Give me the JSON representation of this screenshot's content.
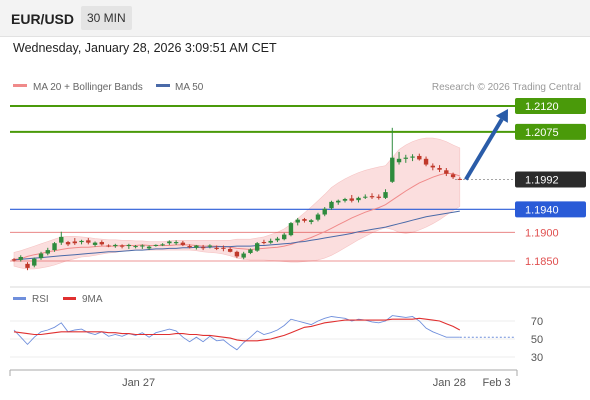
{
  "header": {
    "symbol": "EUR/USD",
    "timeframe": "30 MIN",
    "datetime": "Wednesday, January 28, 2026 3:09:51 AM CET"
  },
  "legend": {
    "ma20": "MA 20 + Bollinger Bands",
    "ma50": "MA 50",
    "credit": "Research © 2026 Trading Central"
  },
  "rsi_legend": {
    "rsi": "RSI",
    "ma": "9MA"
  },
  "colors": {
    "target_green": "#4a9a0a",
    "pivot_blue": "#2a5bd7",
    "support_red": "#e05050",
    "candle_up": "#2e8b3d",
    "candle_down": "#c0392b",
    "arrow": "#2a5ca8",
    "ma20": "#f08a8a",
    "ma50": "#4a6aa8",
    "bollinger_fill": "#fbdede",
    "rsi_line": "#6f8fdc",
    "rsi_ma": "#e03030"
  },
  "chart_data": {
    "type": "candlestick",
    "price_range": [
      1.182,
      1.216
    ],
    "levels": [
      {
        "value": 1.212,
        "label": "1.2120",
        "kind": "target"
      },
      {
        "value": 1.2075,
        "label": "1.2075",
        "kind": "target"
      },
      {
        "value": 1.1992,
        "label": "1.1992",
        "kind": "last"
      },
      {
        "value": 1.194,
        "label": "1.1940",
        "kind": "pivot"
      },
      {
        "value": 1.19,
        "label": "1.1900",
        "kind": "support"
      },
      {
        "value": 1.185,
        "label": "1.1850",
        "kind": "support"
      }
    ],
    "candles": [
      [
        1.1853,
        1.1855,
        1.1849,
        1.1851
      ],
      [
        1.1852,
        1.186,
        1.1849,
        1.1857
      ],
      [
        1.1845,
        1.1848,
        1.1834,
        1.1838
      ],
      [
        1.1842,
        1.1856,
        1.1839,
        1.1854
      ],
      [
        1.1855,
        1.1866,
        1.1852,
        1.1863
      ],
      [
        1.1863,
        1.1873,
        1.186,
        1.1869
      ],
      [
        1.1869,
        1.1883,
        1.1866,
        1.1881
      ],
      [
        1.1882,
        1.1901,
        1.1878,
        1.1892
      ],
      [
        1.1883,
        1.1885,
        1.1876,
        1.1879
      ],
      [
        1.1884,
        1.189,
        1.1878,
        1.1881
      ],
      [
        1.1883,
        1.1887,
        1.1879,
        1.1885
      ],
      [
        1.1886,
        1.189,
        1.1879,
        1.1882
      ],
      [
        1.1878,
        1.1884,
        1.1875,
        1.1882
      ],
      [
        1.1883,
        1.1886,
        1.1877,
        1.1879
      ],
      [
        1.1877,
        1.1879,
        1.1874,
        1.1876
      ],
      [
        1.1876,
        1.188,
        1.1873,
        1.1878
      ],
      [
        1.1877,
        1.1879,
        1.1872,
        1.1875
      ],
      [
        1.1876,
        1.188,
        1.1871,
        1.1878
      ],
      [
        1.1875,
        1.1878,
        1.1872,
        1.1876
      ],
      [
        1.1876,
        1.1879,
        1.1871,
        1.1877
      ],
      [
        1.1872,
        1.1877,
        1.1869,
        1.1875
      ],
      [
        1.1877,
        1.1879,
        1.1875,
        1.1878
      ],
      [
        1.1878,
        1.1881,
        1.1876,
        1.1879
      ],
      [
        1.1881,
        1.1886,
        1.1878,
        1.1884
      ],
      [
        1.1881,
        1.1886,
        1.1878,
        1.1883
      ],
      [
        1.1882,
        1.1885,
        1.1876,
        1.1878
      ],
      [
        1.1876,
        1.1879,
        1.1872,
        1.1874
      ],
      [
        1.1873,
        1.1878,
        1.187,
        1.1877
      ],
      [
        1.1874,
        1.1878,
        1.1869,
        1.1873
      ],
      [
        1.1875,
        1.1879,
        1.1872,
        1.1877
      ],
      [
        1.1873,
        1.1877,
        1.1869,
        1.1871
      ],
      [
        1.1873,
        1.1877,
        1.1867,
        1.1872
      ],
      [
        1.1871,
        1.1874,
        1.1865,
        1.1866
      ],
      [
        1.1866,
        1.1868,
        1.1855,
        1.1858
      ],
      [
        1.1856,
        1.1866,
        1.1853,
        1.1863
      ],
      [
        1.1864,
        1.1872,
        1.1862,
        1.187
      ],
      [
        1.1868,
        1.1883,
        1.1866,
        1.1881
      ],
      [
        1.1883,
        1.1887,
        1.1879,
        1.1882
      ],
      [
        1.1882,
        1.1889,
        1.188,
        1.1885
      ],
      [
        1.1886,
        1.1892,
        1.1883,
        1.1889
      ],
      [
        1.1888,
        1.1899,
        1.1886,
        1.1896
      ],
      [
        1.1895,
        1.1918,
        1.1893,
        1.1916
      ],
      [
        1.1917,
        1.1925,
        1.1912,
        1.1922
      ],
      [
        1.1923,
        1.1925,
        1.1917,
        1.192
      ],
      [
        1.1918,
        1.1923,
        1.1914,
        1.1921
      ],
      [
        1.1922,
        1.1934,
        1.1919,
        1.1931
      ],
      [
        1.1931,
        1.1944,
        1.1928,
        1.1941
      ],
      [
        1.1942,
        1.1955,
        1.1939,
        1.1953
      ],
      [
        1.1952,
        1.1957,
        1.1948,
        1.1955
      ],
      [
        1.1955,
        1.196,
        1.1952,
        1.1958
      ],
      [
        1.1959,
        1.1965,
        1.1952,
        1.1955
      ],
      [
        1.1956,
        1.1962,
        1.1952,
        1.196
      ],
      [
        1.1961,
        1.1966,
        1.1958,
        1.1962
      ],
      [
        1.1963,
        1.1968,
        1.1958,
        1.1961
      ],
      [
        1.1962,
        1.1966,
        1.1957,
        1.196
      ],
      [
        1.196,
        1.1975,
        1.1958,
        1.197
      ],
      [
        1.1988,
        1.2082,
        1.1986,
        1.203
      ],
      [
        1.2022,
        1.204,
        1.2018,
        1.2028
      ],
      [
        1.2028,
        1.2035,
        1.2021,
        1.203
      ],
      [
        1.203,
        1.2036,
        1.2024,
        1.2032
      ],
      [
        1.2033,
        1.2037,
        1.2025,
        1.2027
      ],
      [
        1.2028,
        1.2032,
        1.2015,
        1.2018
      ],
      [
        1.2016,
        1.202,
        1.2008,
        1.2013
      ],
      [
        1.2012,
        1.2017,
        1.2005,
        1.2009
      ],
      [
        1.2008,
        1.2012,
        1.1998,
        1.2002
      ],
      [
        1.2001,
        1.2004,
        1.1993,
        1.1996
      ],
      [
        1.1993,
        1.1996,
        1.1991,
        1.1992
      ]
    ],
    "ma20": [
      1.1853,
      1.1854,
      1.1858,
      1.1861,
      1.1863,
      1.1866,
      1.1868,
      1.187,
      1.1872,
      1.1873,
      1.1874,
      1.1874,
      1.1875,
      1.1876,
      1.1876,
      1.1876,
      1.1877,
      1.1877,
      1.1877,
      1.1878,
      1.1877,
      1.1877,
      1.1877,
      1.1877,
      1.1878,
      1.1878,
      1.1878,
      1.1877,
      1.1876,
      1.1876,
      1.1876,
      1.1875,
      1.1874,
      1.1872,
      1.1871,
      1.187,
      1.1871,
      1.1872,
      1.1873,
      1.1874,
      1.1876,
      1.1879,
      1.1883,
      1.1887,
      1.1891,
      1.1896,
      1.1901,
      1.1907,
      1.1913,
      1.1919,
      1.1925,
      1.193,
      1.1935,
      1.1939,
      1.1943,
      1.1948,
      1.1956,
      1.1964,
      1.1972,
      1.1979,
      1.1986,
      1.1991,
      1.1996,
      1.2,
      1.2003,
      1.2002,
      1.1998
    ],
    "bb_upper": [
      1.1865,
      1.1868,
      1.1872,
      1.1876,
      1.188,
      1.1884,
      1.1888,
      1.1892,
      1.1893,
      1.1893,
      1.1892,
      1.1891,
      1.1889,
      1.1888,
      1.1887,
      1.1887,
      1.1886,
      1.1886,
      1.1885,
      1.1885,
      1.1884,
      1.1884,
      1.1884,
      1.1885,
      1.1886,
      1.1886,
      1.1886,
      1.1886,
      1.1886,
      1.1886,
      1.1886,
      1.1886,
      1.1886,
      1.1888,
      1.1888,
      1.1888,
      1.189,
      1.1892,
      1.1896,
      1.19,
      1.1906,
      1.1914,
      1.1924,
      1.1934,
      1.1944,
      1.1955,
      1.1966,
      1.1978,
      1.1986,
      1.1993,
      1.1999,
      1.2004,
      1.2008,
      1.2011,
      1.2014,
      1.2016,
      1.203,
      1.2044,
      1.2052,
      1.2058,
      1.2062,
      1.2064,
      1.2064,
      1.2062,
      1.2058,
      1.2052,
      1.2047
    ],
    "bb_lower": [
      1.1841,
      1.1838,
      1.1836,
      1.1836,
      1.1838,
      1.184,
      1.1843,
      1.1847,
      1.1851,
      1.1854,
      1.1857,
      1.1858,
      1.186,
      1.1862,
      1.1864,
      1.1865,
      1.1867,
      1.1868,
      1.1869,
      1.1869,
      1.1869,
      1.1869,
      1.1869,
      1.1869,
      1.1869,
      1.1869,
      1.1869,
      1.1868,
      1.1866,
      1.1865,
      1.1864,
      1.1862,
      1.1859,
      1.1855,
      1.1853,
      1.1852,
      1.1852,
      1.1852,
      1.1851,
      1.185,
      1.1849,
      1.1848,
      1.1848,
      1.1849,
      1.185,
      1.1852,
      1.1855,
      1.186,
      1.1866,
      1.1873,
      1.188,
      1.1887,
      1.1893,
      1.1899,
      1.1904,
      1.1908,
      1.1905,
      1.19,
      1.1898,
      1.19,
      1.1904,
      1.1909,
      1.1915,
      1.1922,
      1.193,
      1.1938,
      1.1945
    ],
    "ma50": [
      1.1852,
      1.1853,
      1.1854,
      1.1855,
      1.1856,
      1.1857,
      1.1858,
      1.1859,
      1.186,
      1.1861,
      1.1862,
      1.1863,
      1.1864,
      1.1865,
      1.1866,
      1.1866,
      1.1867,
      1.1868,
      1.1869,
      1.1869,
      1.187,
      1.1871,
      1.1871,
      1.1872,
      1.1872,
      1.1873,
      1.1873,
      1.1874,
      1.1874,
      1.1874,
      1.1875,
      1.1875,
      1.1875,
      1.1876,
      1.1876,
      1.1876,
      1.1877,
      1.1877,
      1.1878,
      1.1879,
      1.188,
      1.1881,
      1.1883,
      1.1884,
      1.1886,
      1.1888,
      1.189,
      1.1892,
      1.1894,
      1.1896,
      1.1898,
      1.1901,
      1.1903,
      1.1905,
      1.1907,
      1.1909,
      1.1912,
      1.1915,
      1.1918,
      1.1921,
      1.1924,
      1.1927,
      1.1929,
      1.1931,
      1.1933,
      1.1935,
      1.1937
    ],
    "rsi": {
      "range": [
        20,
        80
      ],
      "ticks": [
        30,
        50,
        70
      ],
      "rsi": [
        60,
        52,
        44,
        52,
        58,
        60,
        63,
        68,
        58,
        60,
        61,
        57,
        55,
        58,
        53,
        55,
        53,
        56,
        54,
        57,
        52,
        57,
        59,
        61,
        59,
        52,
        47,
        52,
        47,
        53,
        48,
        49,
        43,
        38,
        46,
        52,
        59,
        55,
        57,
        60,
        65,
        72,
        70,
        68,
        66,
        70,
        73,
        75,
        74,
        73,
        70,
        72,
        71,
        69,
        68,
        70,
        76,
        75,
        74,
        75,
        70,
        62,
        58,
        55,
        52,
        52,
        52
      ],
      "ma": [
        58,
        57,
        56,
        55,
        55,
        56,
        57,
        58,
        58,
        58,
        58,
        58,
        58,
        58,
        57,
        57,
        56,
        56,
        55,
        55,
        55,
        55,
        55,
        55,
        56,
        56,
        55,
        55,
        54,
        54,
        53,
        52,
        51,
        49,
        48,
        48,
        48,
        49,
        50,
        52,
        54,
        57,
        60,
        63,
        64,
        66,
        68,
        69,
        70,
        71,
        71,
        71,
        71,
        71,
        71,
        71,
        72,
        72,
        72,
        72,
        73,
        72,
        71,
        70,
        67,
        64,
        60
      ],
      "forecast_value": 52
    },
    "x_ticks": [
      {
        "label": "Jan 27",
        "index": 18
      },
      {
        "label": "Jan 28",
        "index": 64
      },
      {
        "label": "Feb 3",
        "index": 71
      }
    ],
    "projection": {
      "from_value": 1.1992,
      "to_value": 1.212
    }
  }
}
